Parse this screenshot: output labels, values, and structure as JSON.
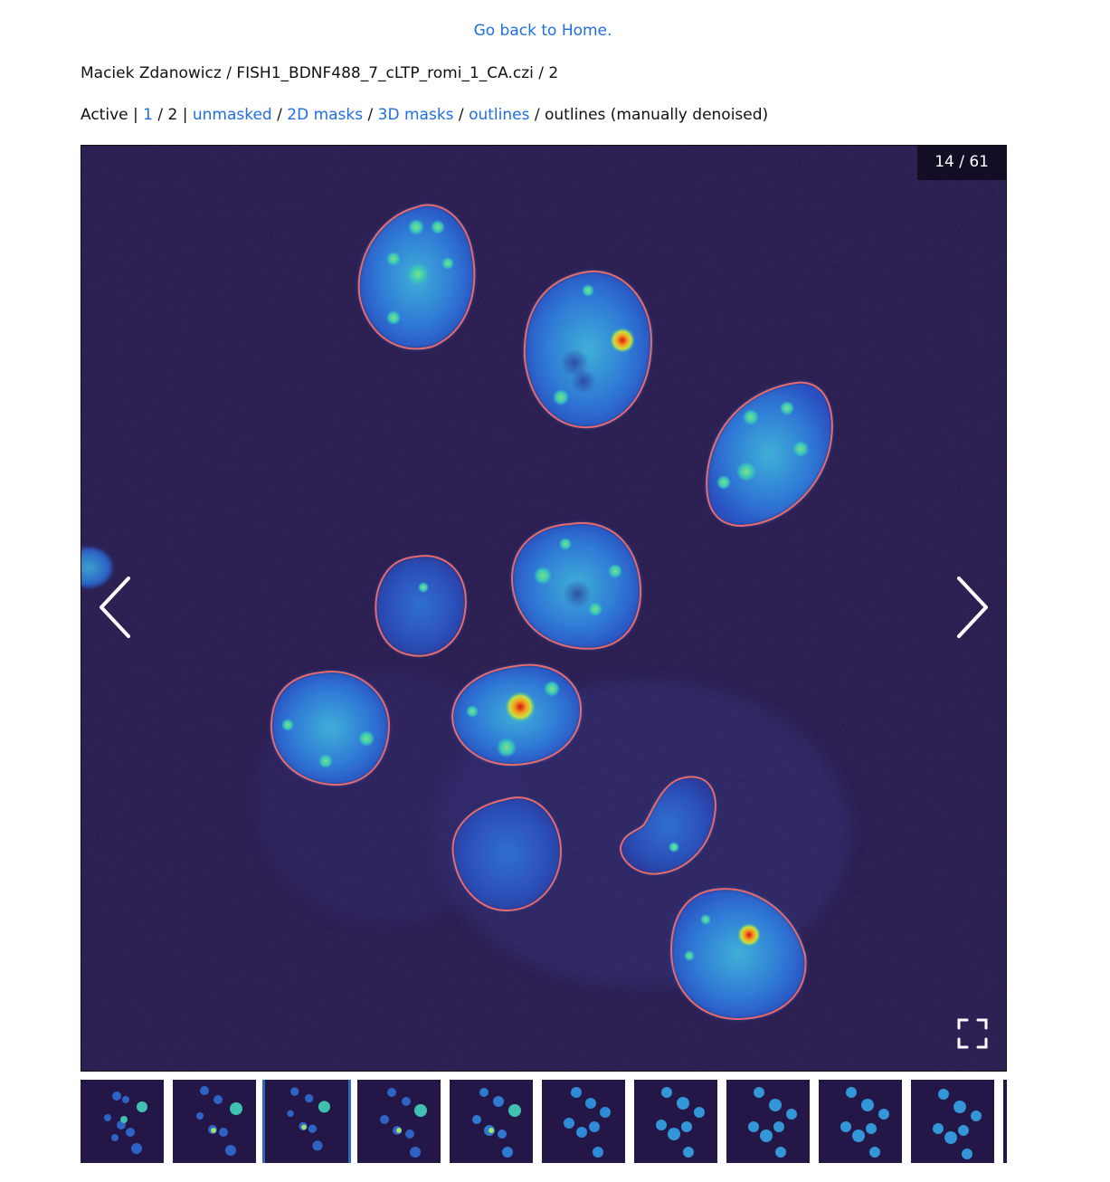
{
  "nav": {
    "home_link": "Go back to Home."
  },
  "breadcrumb": {
    "user": "Maciek Zdanowicz",
    "sep1": " / ",
    "file": "FISH1_BDNF488_7_cLTP_romi_1_CA.czi",
    "sep2": " / ",
    "series": "2"
  },
  "versions": {
    "prefix": "Active | ",
    "link1": "1",
    "sep_a": " / 2 | ",
    "unmasked": "unmasked",
    "sep_b": " / ",
    "masks2d": "2D masks",
    "sep_c": " / ",
    "masks3d": "3D masks",
    "sep_d": " / ",
    "outlines": "outlines",
    "sep_e": " / outlines (manually denoised)"
  },
  "viewer": {
    "counter": "14 / 61",
    "prev_icon": "chevron-left-icon",
    "next_icon": "chevron-right-icon",
    "fullscreen_icon": "fullscreen-icon",
    "outline_color": "#e86a6a",
    "background_color": "#241646"
  },
  "thumbnails": {
    "count_visible": 10,
    "active_index": 2
  }
}
